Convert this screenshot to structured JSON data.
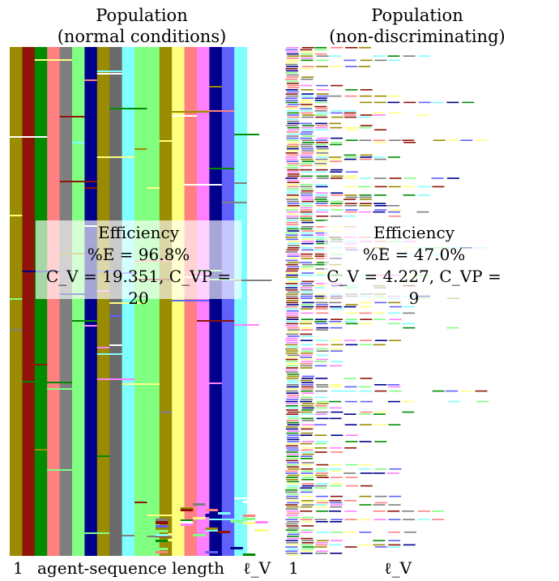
{
  "left": {
    "title_line1": "Population",
    "title_line2": "(normal conditions)",
    "overlay_line1": "Efficiency",
    "overlay_line2": "%E = 96.8%",
    "overlay_line3": "C_V = 19.351, C_VP = 20",
    "axis_start": "1",
    "axis_label": "agent-sequence length",
    "axis_end": "ℓ_V",
    "efficiency_percent": 96.8,
    "c_v": 19.351,
    "c_vp": 20,
    "column_colors": [
      "#9a8c00",
      "#8f1408",
      "#008c00",
      "#ff8080",
      "#7f7f7f",
      "#80ff80",
      "#00008c",
      "#9a8c00",
      "#6a6a6a",
      "#80ffff",
      "#80ff80",
      "#80ff80",
      "#9a8c00",
      "#ffff80",
      "#ff8080",
      "#ff80ff",
      "#00008c",
      "#6060ff",
      "#80ffff"
    ]
  },
  "right": {
    "title_line1": "Population",
    "title_line2": "(non-discriminating)",
    "overlay_line1": "Efficiency",
    "overlay_line2": "%E = 47.0%",
    "overlay_line3": "C_V = 4.227, C_VP = 9",
    "axis_start": "1",
    "axis_end": "ℓ_V",
    "efficiency_percent": 47.0,
    "c_v": 4.227,
    "c_vp": 9
  },
  "palette": [
    "#9a8c00",
    "#8f1408",
    "#008c00",
    "#ff8080",
    "#7f7f7f",
    "#80ff80",
    "#00008c",
    "#80ffff",
    "#ffff80",
    "#ff80ff",
    "#6060ff",
    "#ffffff"
  ]
}
